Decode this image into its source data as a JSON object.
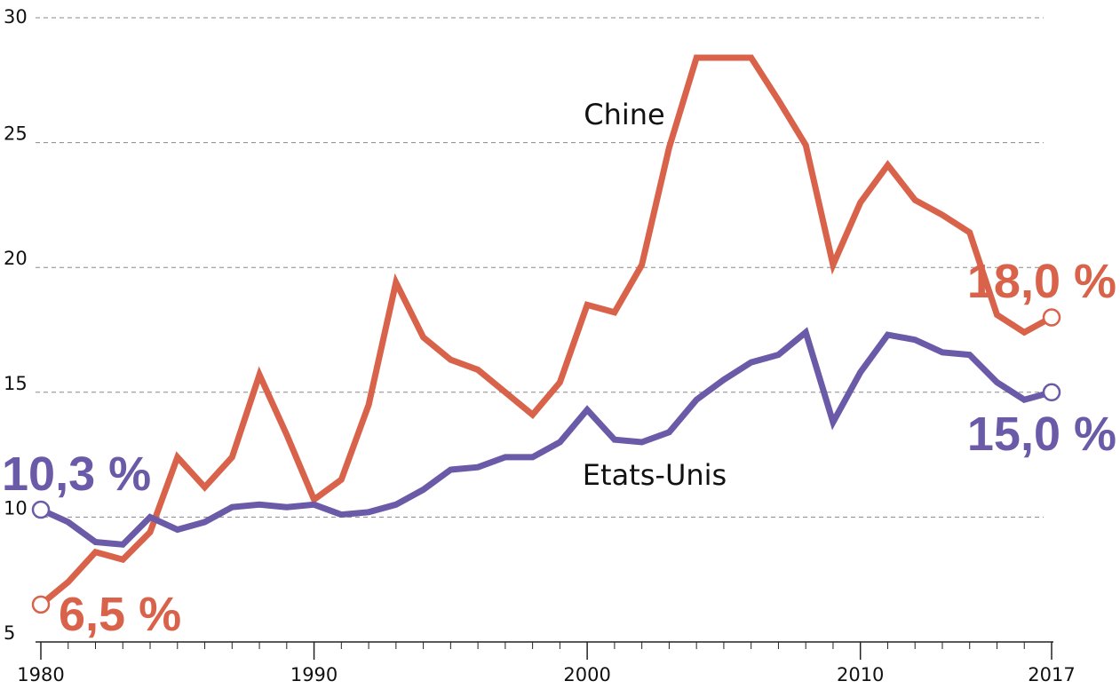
{
  "chart_data": {
    "type": "line",
    "x": [
      1980,
      1981,
      1982,
      1983,
      1984,
      1985,
      1986,
      1987,
      1988,
      1989,
      1990,
      1991,
      1992,
      1993,
      1994,
      1995,
      1996,
      1997,
      1998,
      1999,
      2000,
      2001,
      2002,
      2003,
      2004,
      2005,
      2006,
      2007,
      2008,
      2009,
      2010,
      2011,
      2012,
      2013,
      2014,
      2015,
      2016,
      2017
    ],
    "xticks": [
      1980,
      1990,
      2000,
      2010,
      2017
    ],
    "xtick_labels": [
      "1980",
      "1990",
      "2000",
      "2010",
      "2017"
    ],
    "yticks": [
      5,
      10,
      15,
      20,
      25,
      30
    ],
    "ytick_labels": [
      "5",
      "10",
      "15",
      "20",
      "25",
      "30"
    ],
    "xlim": [
      1980,
      2017
    ],
    "ylim": [
      5,
      30
    ],
    "grid": "horizontal dashed",
    "series": [
      {
        "name": "Chine",
        "color": "#d9624a",
        "values": [
          6.5,
          7.4,
          8.6,
          8.3,
          9.4,
          12.4,
          11.2,
          12.4,
          15.7,
          13.3,
          10.7,
          11.5,
          14.5,
          19.4,
          17.2,
          16.3,
          15.9,
          15.0,
          14.1,
          15.4,
          18.5,
          18.2,
          20.1,
          24.8,
          28.4,
          28.4,
          28.4,
          26.7,
          24.9,
          20.1,
          22.6,
          24.1,
          22.7,
          22.1,
          21.4,
          18.1,
          17.4,
          18.0
        ],
        "start_label": "6,5 %",
        "end_label": "18,0 %"
      },
      {
        "name": "Etats-Unis",
        "color": "#6b5aa8",
        "values": [
          10.3,
          9.8,
          9.0,
          8.9,
          10.0,
          9.5,
          9.8,
          10.4,
          10.5,
          10.4,
          10.5,
          10.1,
          10.2,
          10.5,
          11.1,
          11.9,
          12.0,
          12.4,
          12.4,
          13.0,
          14.3,
          13.1,
          13.0,
          13.4,
          14.7,
          15.5,
          16.2,
          16.5,
          17.4,
          13.8,
          15.8,
          17.3,
          17.1,
          16.6,
          16.5,
          15.4,
          14.7,
          15.0
        ],
        "start_label": "10,3 %",
        "end_label": "15,0 %"
      }
    ]
  }
}
